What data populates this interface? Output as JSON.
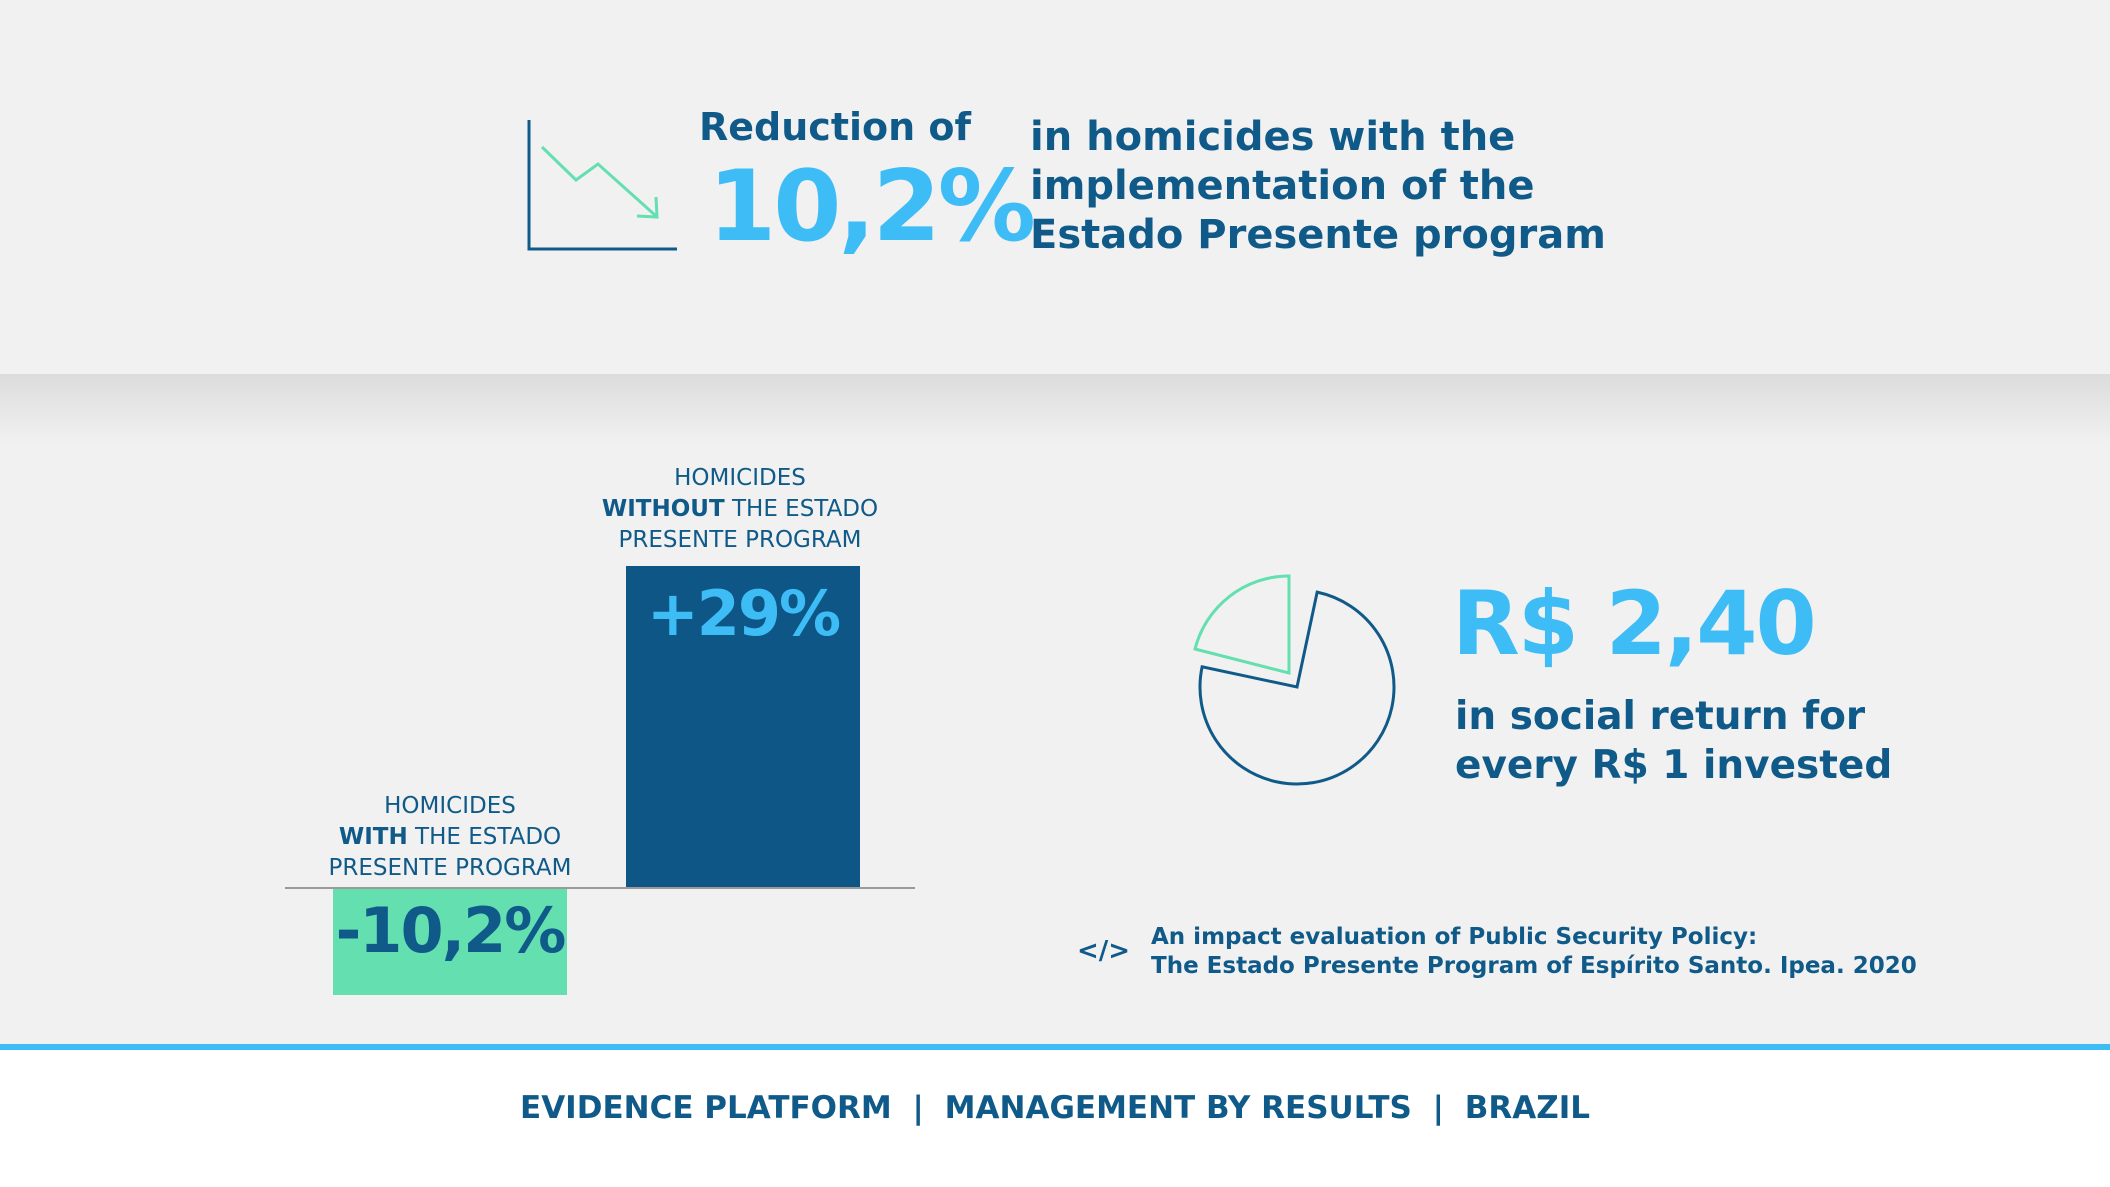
{
  "headline": {
    "reduction_label": "Reduction of",
    "percent": "10,2%",
    "line1": "in homicides with the",
    "line2": "implementation of the",
    "line3": "Estado Presente program"
  },
  "chart_data": {
    "type": "bar",
    "categories": [
      "HOMICIDES WITH THE ESTADO PRESENTE PROGRAM",
      "HOMICIDES WITHOUT THE ESTADO PRESENTE PROGRAM"
    ],
    "values": [
      -10.2,
      29
    ],
    "data_labels": [
      "-10,2%",
      "+29%"
    ],
    "colors": [
      "#63dfb0",
      "#0d5686"
    ],
    "baseline": 0,
    "ylim": [
      -10.2,
      29
    ]
  },
  "bars": {
    "with": {
      "line1": "HOMICIDES",
      "bold": "WITH",
      "rest": " THE ESTADO",
      "line3": "PRESENTE PROGRAM"
    },
    "without": {
      "line1": "HOMICIDES",
      "bold": "WITHOUT",
      "rest": " THE ESTADO",
      "line3": "PRESENTE PROGRAM"
    }
  },
  "social_return": {
    "value": "R$ 2,40",
    "line1": "in social return for",
    "line2": "every R$ 1 invested"
  },
  "source": {
    "icon": "code-icon",
    "icon_glyph": "</>",
    "line1": "An impact evaluation of Public Security Policy:",
    "line2": "The Estado Presente Program of Espírito Santo. Ipea. 2020"
  },
  "footer": {
    "part1": "EVIDENCE PLATFORM",
    "sep1": "|",
    "part2": "MANAGEMENT BY RESULTS",
    "sep2": "|",
    "part3": "BRAZIL"
  },
  "colors": {
    "dark_blue": "#0f5a88",
    "light_blue": "#3dbcf6",
    "green": "#63dfb0",
    "background": "#f1f1f1"
  }
}
